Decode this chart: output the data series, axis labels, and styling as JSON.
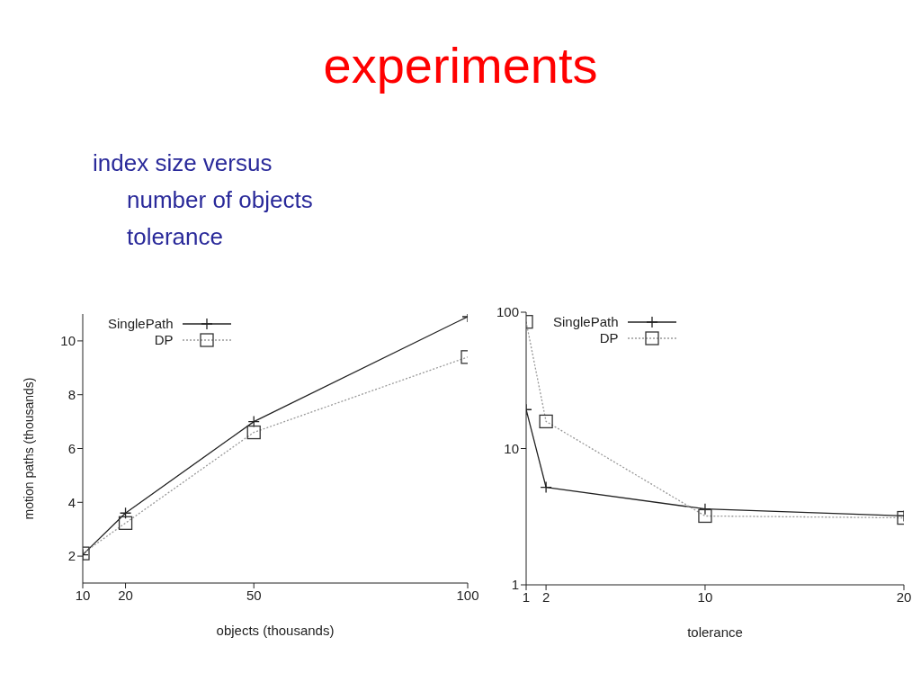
{
  "chart_data": [
    {
      "type": "line",
      "title": "experiments",
      "annotations": [
        "index size versus",
        "number of objects",
        "tolerance"
      ],
      "xlabel": "objects (thousands)",
      "ylabel": "motion paths (thousands)",
      "x": [
        10,
        20,
        50,
        100
      ],
      "xlim": [
        10,
        100
      ],
      "xticks": [
        10,
        20,
        50,
        100
      ],
      "ylim": [
        1,
        11
      ],
      "yticks": [
        2,
        4,
        6,
        8,
        10
      ],
      "legend": "top left",
      "grid": false,
      "series": [
        {
          "name": "SinglePath",
          "color": "#222222",
          "marker": "cross",
          "line_style": "solid",
          "values": [
            2.05,
            3.6,
            7.0,
            10.9
          ]
        },
        {
          "name": "DP",
          "color": "#999999",
          "marker": "square",
          "line_style": "dotted",
          "values": [
            2.1,
            3.23,
            6.6,
            9.4
          ]
        }
      ]
    },
    {
      "type": "line",
      "xlabel": "tolerance",
      "x": [
        1,
        2,
        10,
        20
      ],
      "xlim": [
        1,
        20
      ],
      "xticks": [
        1,
        2,
        10,
        20
      ],
      "ylim": [
        1,
        100
      ],
      "yticks": [
        1,
        10,
        100
      ],
      "log": "y",
      "legend": "top left",
      "grid": false,
      "series": [
        {
          "name": "SinglePath",
          "color": "#222222",
          "marker": "cross",
          "line_style": "solid",
          "values": [
            19.3,
            5.2,
            3.6,
            3.2
          ]
        },
        {
          "name": "DP",
          "color": "#999999",
          "marker": "square",
          "line_style": "dotted",
          "values": [
            85,
            15.8,
            3.2,
            3.1
          ]
        }
      ]
    }
  ]
}
